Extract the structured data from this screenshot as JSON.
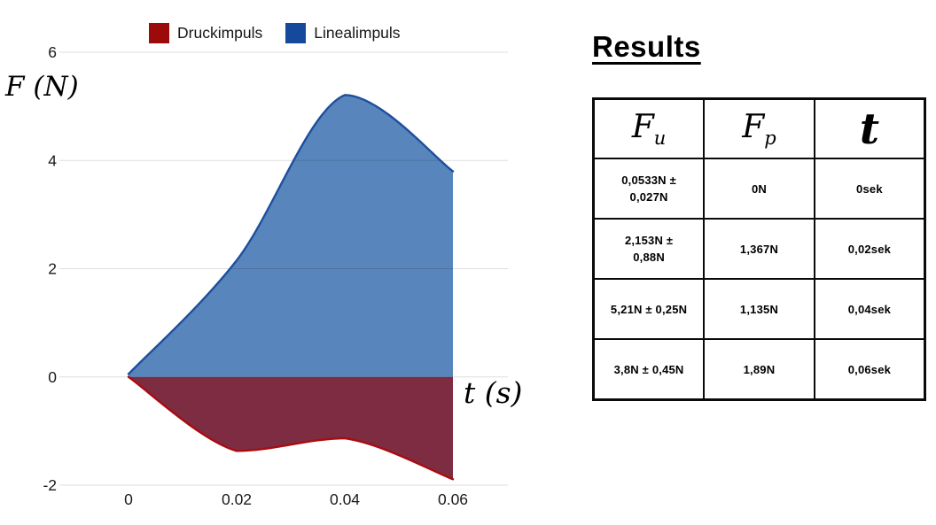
{
  "chart_data": {
    "type": "area",
    "title": "",
    "xlabel": "t (s)",
    "ylabel": "F (N)",
    "x": [
      0,
      0.02,
      0.04,
      0.06
    ],
    "x_tick_labels": [
      "0",
      "0.02",
      "0.04",
      "0.06"
    ],
    "y_ticks": [
      -2,
      0,
      2,
      4,
      6
    ],
    "y_tick_labels": [
      "-2",
      "0",
      "2",
      "4",
      "6"
    ],
    "xlim": [
      0,
      0.06
    ],
    "ylim": [
      -2,
      6
    ],
    "grid": true,
    "legend_position": "top",
    "series": [
      {
        "name": "Druckimpuls",
        "values": [
          0,
          -1.367,
          -1.135,
          -1.89
        ],
        "fill_color": "#7E2C42",
        "line_color": "#AA0B0E",
        "legend_color": "#9B0B0B"
      },
      {
        "name": "Linealimpuls",
        "values": [
          0.0533,
          2.153,
          5.21,
          3.8
        ],
        "fill_color": "#5885BB",
        "line_color": "#1D4F9E",
        "legend_color": "#15499B"
      }
    ]
  },
  "results": {
    "title": "Results",
    "headers": [
      {
        "base": "F",
        "sub": "u"
      },
      {
        "base": "F",
        "sub": "p"
      },
      {
        "base": "t",
        "sub": ""
      }
    ],
    "rows": [
      [
        "0,0533N ±\n0,027N",
        "0N",
        "0sek"
      ],
      [
        "2,153N ±\n0,88N",
        "1,367N",
        "0,02sek"
      ],
      [
        "5,21N ± 0,25N",
        "1,135N",
        "0,04sek"
      ],
      [
        "3,8N ± 0,45N",
        "1,89N",
        "0,06sek"
      ]
    ]
  }
}
